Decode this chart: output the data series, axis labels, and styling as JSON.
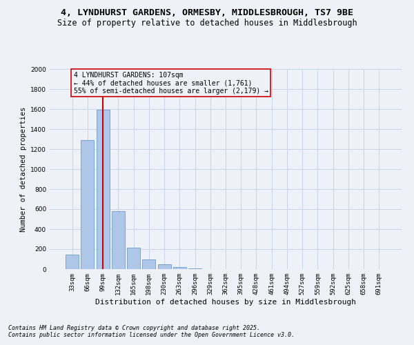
{
  "title1": "4, LYNDHURST GARDENS, ORMESBY, MIDDLESBROUGH, TS7 9BE",
  "title2": "Size of property relative to detached houses in Middlesbrough",
  "xlabel": "Distribution of detached houses by size in Middlesbrough",
  "ylabel": "Number of detached properties",
  "categories": [
    "33sqm",
    "66sqm",
    "99sqm",
    "132sqm",
    "165sqm",
    "198sqm",
    "230sqm",
    "263sqm",
    "296sqm",
    "329sqm",
    "362sqm",
    "395sqm",
    "428sqm",
    "461sqm",
    "494sqm",
    "527sqm",
    "559sqm",
    "592sqm",
    "625sqm",
    "658sqm",
    "691sqm"
  ],
  "values": [
    145,
    1290,
    1595,
    580,
    215,
    100,
    50,
    20,
    5,
    0,
    0,
    0,
    0,
    0,
    0,
    0,
    0,
    0,
    0,
    0,
    0
  ],
  "bar_color": "#aec6e8",
  "bar_edge_color": "#5a8fc0",
  "grid_color": "#c8d4e8",
  "background_color": "#eef2f8",
  "vline_x": 2,
  "vline_color": "#cc0000",
  "annotation_text": "4 LYNDHURST GARDENS: 107sqm\n← 44% of detached houses are smaller (1,761)\n55% of semi-detached houses are larger (2,179) →",
  "annotation_box_color": "#cc0000",
  "ylim": [
    0,
    2000
  ],
  "yticks": [
    0,
    200,
    400,
    600,
    800,
    1000,
    1200,
    1400,
    1600,
    1800,
    2000
  ],
  "footnote1": "Contains HM Land Registry data © Crown copyright and database right 2025.",
  "footnote2": "Contains public sector information licensed under the Open Government Licence v3.0.",
  "title1_fontsize": 9.5,
  "title2_fontsize": 8.5,
  "xlabel_fontsize": 8,
  "ylabel_fontsize": 7.5,
  "tick_fontsize": 6.5,
  "annot_fontsize": 7,
  "footnote_fontsize": 6
}
